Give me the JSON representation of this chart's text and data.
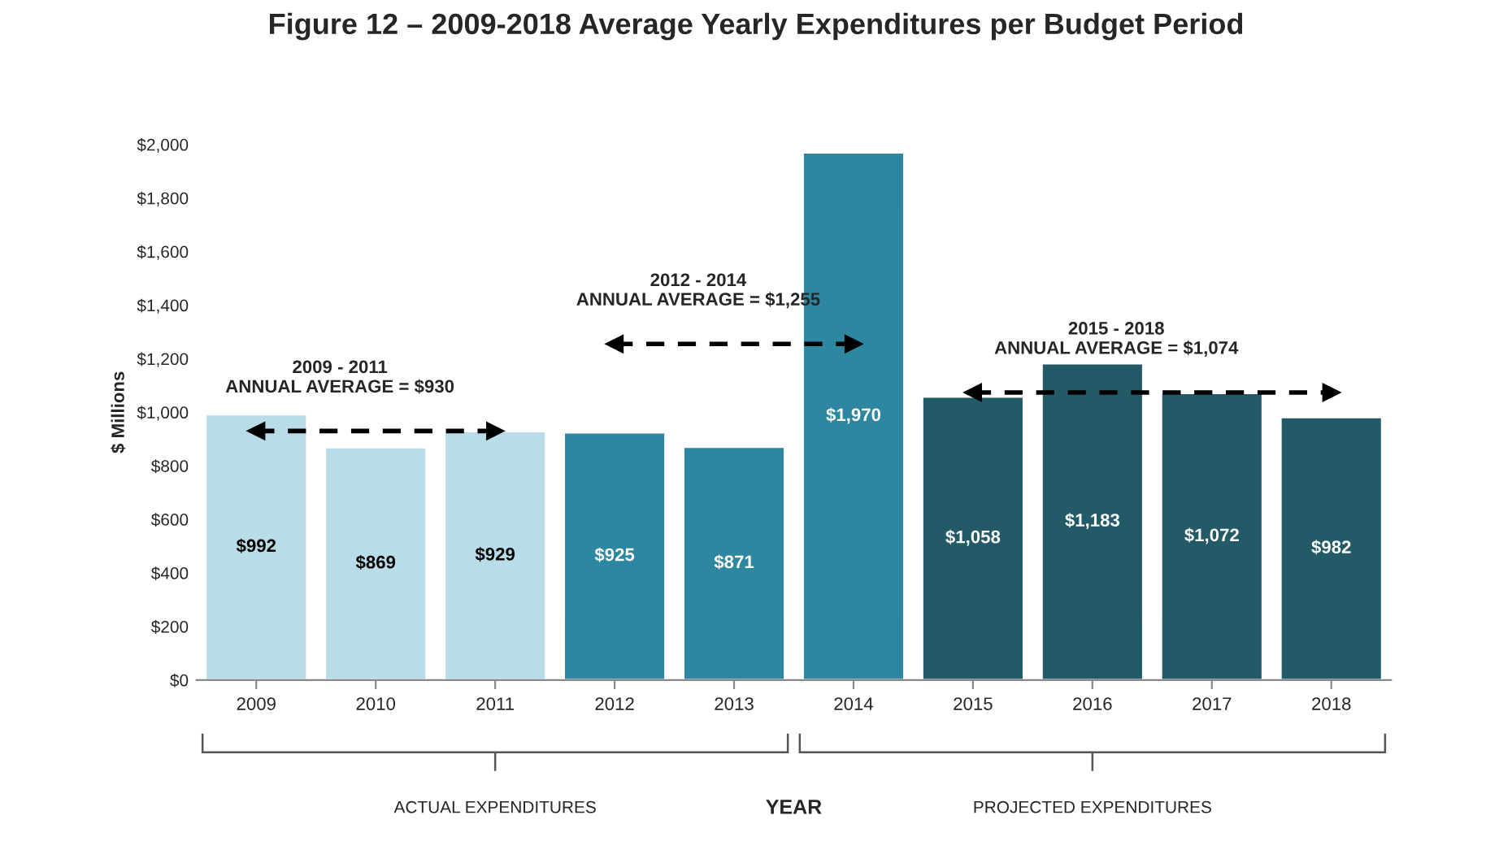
{
  "chart_data": {
    "type": "bar",
    "title": "Figure 12 – 2009-2018 Average Yearly Expenditures per Budget Period",
    "xlabel": "YEAR",
    "ylabel": "$ Millions",
    "categories": [
      "2009",
      "2010",
      "2011",
      "2012",
      "2013",
      "2014",
      "2015",
      "2016",
      "2017",
      "2018"
    ],
    "series": [
      {
        "values": [
          992,
          869,
          929,
          925,
          871,
          1970,
          1058,
          1183,
          1072,
          982
        ],
        "colors": [
          "#b8dde8",
          "#b8dde8",
          "#b8dde8",
          "#2e87a0",
          "#2e87a0",
          "#2e87a0",
          "#235a68",
          "#235a68",
          "#235a68",
          "#235a68"
        ],
        "value_labels": [
          "$992",
          "$869",
          "$929",
          "$925",
          "$871",
          "$1,970",
          "$1,058",
          "$1,183",
          "$1,072",
          "$982"
        ]
      },
      {
        "type": "line",
        "color": "#000000",
        "line_style": "dashed",
        "marker": "triangle",
        "values": [
          930,
          930,
          930,
          null,
          null,
          null,
          null,
          null,
          null,
          null
        ]
      },
      {
        "type": "line",
        "color": "#000000",
        "line_style": "dashed",
        "marker": "triangle",
        "values": [
          null,
          null,
          null,
          1255,
          1255,
          1255,
          null,
          null,
          null,
          null
        ]
      },
      {
        "type": "line",
        "color": "#000000",
        "line_style": "dashed",
        "marker": "triangle",
        "values": [
          null,
          null,
          null,
          null,
          null,
          null,
          1074,
          1074,
          1074,
          1074
        ]
      }
    ],
    "ylim": [
      0,
      2000
    ],
    "yticks": [
      {
        "value": 0,
        "label": "$0"
      },
      {
        "value": 200,
        "label": "$200"
      },
      {
        "value": 400,
        "label": "$400"
      },
      {
        "value": 600,
        "label": "$600"
      },
      {
        "value": 800,
        "label": "$800"
      },
      {
        "value": 1000,
        "label": "$1,000"
      },
      {
        "value": 1200,
        "label": "$1,200"
      },
      {
        "value": 1400,
        "label": "$1,400"
      },
      {
        "value": 1600,
        "label": "$1,600"
      },
      {
        "value": 1800,
        "label": "$1,800"
      },
      {
        "value": 2000,
        "label": "$2,000"
      }
    ],
    "grid": false,
    "annotations": [
      "2009 - 2011\nANNUAL AVERAGE = $930",
      "2012 - 2014\nANNUAL AVERAGE = $1,255",
      "2015 - 2018\nANNUAL AVERAGE = $1,074",
      "ACTUAL EXPENDITURES",
      "PROJECTED EXPENDITURES"
    ]
  }
}
